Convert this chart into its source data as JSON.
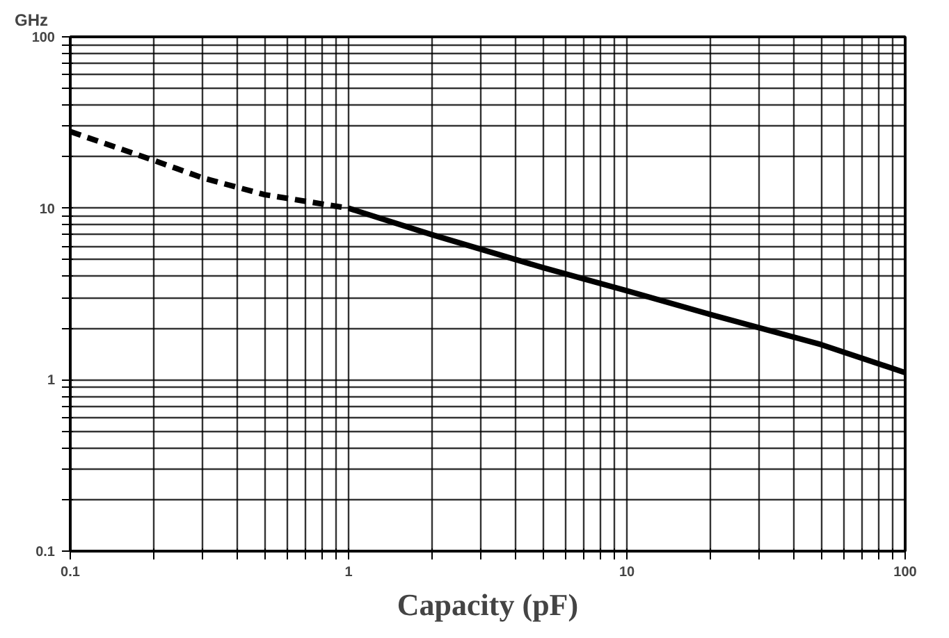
{
  "chart_data": {
    "type": "line",
    "xlabel": "Capacity (pF)",
    "ylabel": "GHz",
    "log": "xy",
    "grid": true,
    "xlim": [
      0.1,
      100
    ],
    "ylim": [
      0.1,
      100
    ],
    "xticks": [
      0.1,
      {
        "value": 0.2,
        "label": null
      },
      {
        "value": 0.3,
        "label": null
      },
      {
        "value": 0.4,
        "label": null
      },
      {
        "value": 0.5,
        "label": null
      },
      {
        "value": 0.6,
        "label": null
      },
      {
        "value": 0.7,
        "label": null
      },
      {
        "value": 0.8,
        "label": null
      },
      {
        "value": 0.9,
        "label": null
      },
      1,
      {
        "value": 2,
        "label": null
      },
      {
        "value": 3,
        "label": null
      },
      {
        "value": 4,
        "label": null
      },
      {
        "value": 5,
        "label": null
      },
      {
        "value": 6,
        "label": null
      },
      {
        "value": 7,
        "label": null
      },
      {
        "value": 8,
        "label": null
      },
      {
        "value": 9,
        "label": null
      },
      10,
      {
        "value": 20,
        "label": null
      },
      {
        "value": 30,
        "label": null
      },
      {
        "value": 40,
        "label": null
      },
      {
        "value": 50,
        "label": null
      },
      {
        "value": 60,
        "label": null
      },
      {
        "value": 70,
        "label": null
      },
      {
        "value": 80,
        "label": null
      },
      {
        "value": 90,
        "label": null
      },
      100
    ],
    "yticks": [
      0.1,
      {
        "value": 0.2,
        "label": null
      },
      {
        "value": 0.3,
        "label": null
      },
      {
        "value": 0.4,
        "label": null
      },
      {
        "value": 0.5,
        "label": null
      },
      {
        "value": 0.6,
        "label": null
      },
      {
        "value": 0.7,
        "label": null
      },
      {
        "value": 0.8,
        "label": null
      },
      {
        "value": 0.9,
        "label": null
      },
      1,
      {
        "value": 2,
        "label": null
      },
      {
        "value": 3,
        "label": null
      },
      {
        "value": 4,
        "label": null
      },
      {
        "value": 5,
        "label": null
      },
      {
        "value": 6,
        "label": null
      },
      {
        "value": 7,
        "label": null
      },
      {
        "value": 8,
        "label": null
      },
      {
        "value": 9,
        "label": null
      },
      10,
      {
        "value": 20,
        "label": null
      },
      {
        "value": 30,
        "label": null
      },
      {
        "value": 40,
        "label": null
      },
      {
        "value": 50,
        "label": null
      },
      {
        "value": 60,
        "label": null
      },
      {
        "value": 70,
        "label": null
      },
      {
        "value": 80,
        "label": null
      },
      {
        "value": 90,
        "label": null
      },
      100
    ],
    "series": [
      {
        "color": "#000000",
        "line_style": "dashed",
        "x": [
          0.1,
          0.2,
          0.3,
          0.5,
          1
        ],
        "values": [
          28,
          19,
          15,
          12,
          10
        ]
      },
      {
        "color": "#000000",
        "line_style": "solid",
        "x": [
          1,
          2,
          5,
          10,
          20,
          50,
          100
        ],
        "values": [
          10,
          7,
          4.5,
          3.3,
          2.4,
          1.6,
          1.1
        ]
      }
    ]
  }
}
